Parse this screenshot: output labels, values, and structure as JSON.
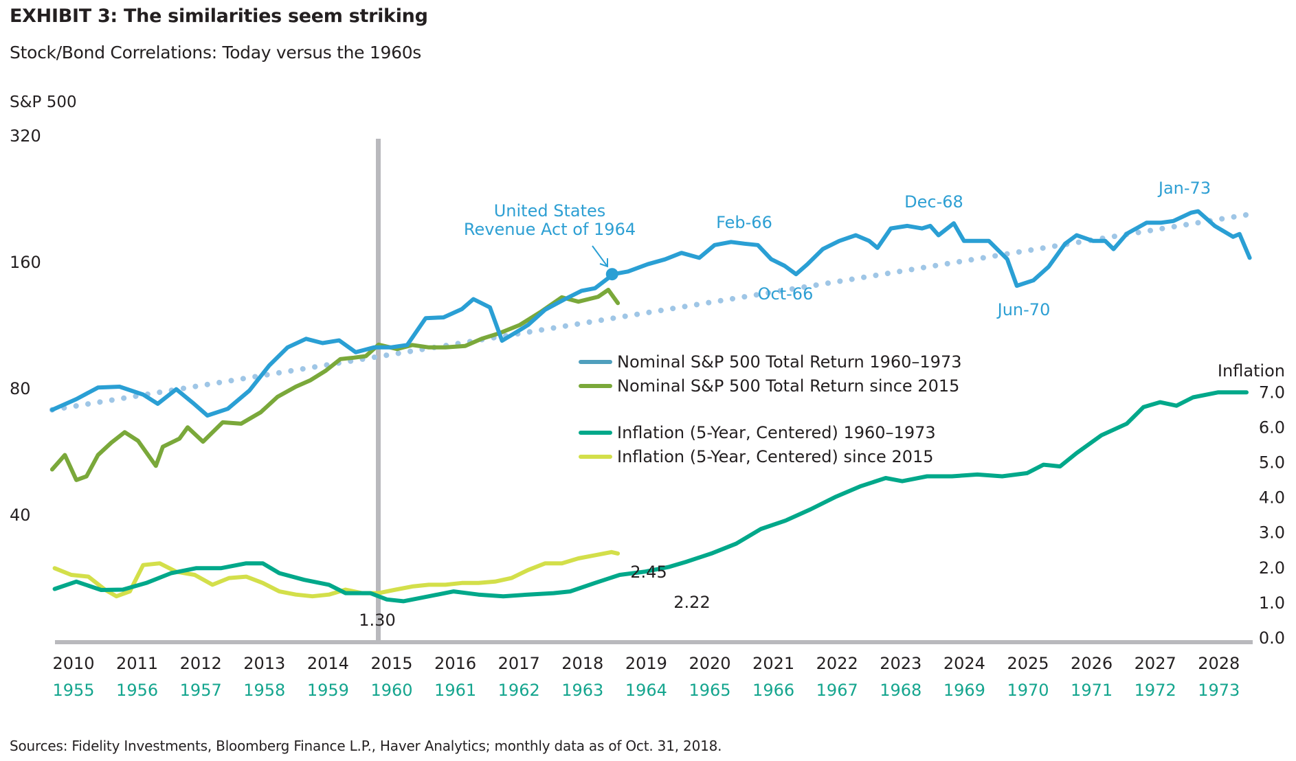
{
  "title": "EXHIBIT 3: The similarities seem striking",
  "subtitle": "Stock/Bond Correlations: Today versus the 1960s",
  "source": "Sources: Fidelity Investments, Bloomberg Finance L.P., Haver Analytics; monthly data as of Oct. 31, 2018.",
  "colors": {
    "sp_1960": "#2a9fd4",
    "sp_2015": "#7aa83a",
    "infl_1960": "#00a88a",
    "infl_2015": "#d3df4a",
    "trend": "#9fc6e6",
    "axis": "#b9b9bd",
    "legend_sp_1960": "#4f9fbd",
    "lower_year_labels": "#14a58e"
  },
  "chart_data": {
    "type": "line",
    "title": "EXHIBIT 3: The similarities seem striking",
    "subtitle": "Stock/Bond Correlations: Today versus the 1960s",
    "y_left": {
      "label": "S&P 500",
      "scale": "log2",
      "ticks": [
        "320",
        "160",
        "80",
        "40"
      ],
      "tick_values": [
        320,
        160,
        80,
        40
      ]
    },
    "y_right": {
      "label": "Inflation",
      "ticks": [
        "7.0",
        "6.0",
        "5.0",
        "4.0",
        "3.0",
        "2.0",
        "1.0",
        "0.0"
      ],
      "tick_values": [
        7,
        6,
        5,
        4,
        3,
        2,
        1,
        0
      ],
      "range": [
        0,
        7
      ]
    },
    "x": {
      "top_labels": [
        "2010",
        "2011",
        "2012",
        "2013",
        "2014",
        "2015",
        "2016",
        "2017",
        "2018",
        "2019",
        "2020",
        "2021",
        "2022",
        "2023",
        "2024",
        "2025",
        "2026",
        "2027",
        "2028"
      ],
      "bottom_labels": [
        "1955",
        "1956",
        "1957",
        "1958",
        "1959",
        "1960",
        "1961",
        "1962",
        "1963",
        "1964",
        "1965",
        "1966",
        "1967",
        "1968",
        "1969",
        "1970",
        "1971",
        "1972",
        "1973"
      ],
      "range": [
        2009.9,
        2028.8
      ],
      "note": "x values expressed on the 2010–2028 calendar; 1960s series are shifted by 55 years"
    },
    "vertical_marker": {
      "x": 2015.0
    },
    "legend": {
      "placement": "center-right",
      "items": [
        {
          "label": "Nominal S&P 500 Total Return 1960–1973",
          "series": "sp_1960"
        },
        {
          "label": "Nominal S&P 500 Total Return since 2015",
          "series": "sp_2015"
        },
        {
          "label": "Inflation (5-Year, Centered) 1960–1973",
          "series": "infl_1960"
        },
        {
          "label": "Inflation (5-Year, Centered) since 2015",
          "series": "infl_2015"
        }
      ]
    },
    "series": [
      {
        "name": "Nominal S&P 500 Total Return 1960–1973",
        "key": "sp_1960",
        "axis": "left",
        "x": [
          2009.88,
          2010.26,
          2010.6,
          2010.94,
          2011.31,
          2011.54,
          2011.83,
          2012.09,
          2012.32,
          2012.64,
          2012.98,
          2013.29,
          2013.58,
          2013.87,
          2014.13,
          2014.39,
          2014.65,
          2014.94,
          2015.2,
          2015.46,
          2015.75,
          2016.03,
          2016.32,
          2016.5,
          2016.76,
          2016.95,
          2017.16,
          2017.36,
          2017.63,
          2017.94,
          2018.2,
          2018.41,
          2018.7,
          2018.93,
          2019.24,
          2019.51,
          2019.77,
          2020.05,
          2020.29,
          2020.55,
          2020.76,
          2020.97,
          2021.18,
          2021.39,
          2021.57,
          2021.75,
          2021.99,
          2022.25,
          2022.51,
          2022.72,
          2022.85,
          2023.06,
          2023.32,
          2023.55,
          2023.68,
          2023.81,
          2024.05,
          2024.21,
          2024.6,
          2024.89,
          2025.04,
          2025.3,
          2025.54,
          2025.8,
          2025.98,
          2026.24,
          2026.43,
          2026.56,
          2026.77,
          2027.08,
          2027.31,
          2027.5,
          2027.78,
          2027.89,
          2028.15,
          2028.44,
          2028.54,
          2028.7
        ],
        "values": [
          71.0,
          75.3,
          80.2,
          80.6,
          77.2,
          73.4,
          79.5,
          73.8,
          68.8,
          71.4,
          78.9,
          90.5,
          100.0,
          104.8,
          102.4,
          103.9,
          97.4,
          100.0,
          100.0,
          101.3,
          117.4,
          117.9,
          123.4,
          130.3,
          124.5,
          103.7,
          108.4,
          113.1,
          123.0,
          130.3,
          136.4,
          138.3,
          149.4,
          151.6,
          157.8,
          162.0,
          167.9,
          163.4,
          175.3,
          178.3,
          176.6,
          175.3,
          162.2,
          156.4,
          149.4,
          157.8,
          171.4,
          179.3,
          185.0,
          179.3,
          172.6,
          192.0,
          194.7,
          192.0,
          194.7,
          185.0,
          197.5,
          179.3,
          179.3,
          162.2,
          140.2,
          144.4,
          155.6,
          176.6,
          185.0,
          179.3,
          179.3,
          171.4,
          186.6,
          198.2,
          198.2,
          200.0,
          209.3,
          211.0,
          194.7,
          183.4,
          186.2,
          163.4
        ]
      },
      {
        "name": "Nominal S&P 500 Total Return since 2015",
        "key": "sp_2015",
        "axis": "left",
        "x": [
          2009.88,
          2010.08,
          2010.26,
          2010.42,
          2010.6,
          2010.81,
          2011.02,
          2011.23,
          2011.51,
          2011.62,
          2011.88,
          2012.01,
          2012.25,
          2012.56,
          2012.85,
          2013.16,
          2013.42,
          2013.71,
          2013.94,
          2014.18,
          2014.41,
          2014.62,
          2014.81,
          2015.01,
          2015.3,
          2015.54,
          2015.8,
          2016.06,
          2016.37,
          2016.63,
          2016.89,
          2017.23,
          2017.57,
          2017.89,
          2018.15,
          2018.46,
          2018.62,
          2018.77
        ],
        "values": [
          51.2,
          55.4,
          48.3,
          49.3,
          55.4,
          59.3,
          62.8,
          59.9,
          52.2,
          58.0,
          60.6,
          64.5,
          59.6,
          66.3,
          65.8,
          70.1,
          76.2,
          80.6,
          83.5,
          88.0,
          93.8,
          94.5,
          95.3,
          101.5,
          99.1,
          101.3,
          100.0,
          100.0,
          100.8,
          104.8,
          107.8,
          113.1,
          121.8,
          131.6,
          128.5,
          132.0,
          137.1,
          127.5
        ]
      },
      {
        "name": "Trend",
        "key": "trend",
        "axis": "left",
        "style": "dotted",
        "x": [
          2009.88,
          2028.78
        ],
        "values": [
          71.0,
          208.4
        ]
      },
      {
        "name": "Inflation (5-Year, Centered) 1960–1973",
        "key": "infl_1960",
        "axis": "right",
        "x": [
          2009.92,
          2010.26,
          2010.65,
          2010.99,
          2011.36,
          2011.75,
          2012.14,
          2012.53,
          2012.93,
          2013.19,
          2013.45,
          2013.84,
          2014.23,
          2014.49,
          2014.88,
          2015.14,
          2015.4,
          2015.8,
          2016.19,
          2016.58,
          2016.97,
          2017.36,
          2017.76,
          2018.02,
          2018.41,
          2018.8,
          2019.19,
          2019.58,
          2019.84,
          2020.24,
          2020.63,
          2021.02,
          2021.41,
          2021.8,
          2022.2,
          2022.59,
          2022.98,
          2023.24,
          2023.63,
          2024.02,
          2024.42,
          2024.81,
          2025.2,
          2025.46,
          2025.72,
          2025.98,
          2026.37,
          2026.77,
          2027.03,
          2027.29,
          2027.55,
          2027.81,
          2028.2,
          2028.65
        ],
        "values": [
          1.38,
          1.59,
          1.35,
          1.36,
          1.55,
          1.83,
          1.97,
          1.97,
          2.11,
          2.11,
          1.83,
          1.64,
          1.5,
          1.26,
          1.26,
          1.08,
          1.03,
          1.17,
          1.31,
          1.22,
          1.17,
          1.22,
          1.26,
          1.31,
          1.55,
          1.78,
          1.87,
          2.01,
          2.15,
          2.39,
          2.67,
          3.09,
          3.33,
          3.65,
          4.01,
          4.31,
          4.54,
          4.45,
          4.59,
          4.59,
          4.64,
          4.59,
          4.68,
          4.92,
          4.87,
          5.25,
          5.76,
          6.09,
          6.56,
          6.7,
          6.6,
          6.84,
          6.98,
          6.98
        ]
      },
      {
        "name": "Inflation (5-Year, Centered) since 2015",
        "key": "infl_2015",
        "axis": "right",
        "x": [
          2009.92,
          2010.18,
          2010.45,
          2010.71,
          2010.89,
          2011.1,
          2011.31,
          2011.57,
          2011.83,
          2012.12,
          2012.4,
          2012.66,
          2012.93,
          2013.19,
          2013.45,
          2013.71,
          2013.97,
          2014.23,
          2014.49,
          2014.75,
          2015.01,
          2015.28,
          2015.54,
          2015.8,
          2016.06,
          2016.32,
          2016.58,
          2016.84,
          2017.1,
          2017.36,
          2017.63,
          2017.89,
          2018.15,
          2018.41,
          2018.67,
          2018.77
        ],
        "values": [
          1.97,
          1.78,
          1.73,
          1.36,
          1.17,
          1.31,
          2.06,
          2.11,
          1.87,
          1.78,
          1.5,
          1.69,
          1.73,
          1.55,
          1.31,
          1.22,
          1.17,
          1.22,
          1.36,
          1.26,
          1.26,
          1.36,
          1.45,
          1.5,
          1.5,
          1.55,
          1.55,
          1.59,
          1.69,
          1.92,
          2.11,
          2.11,
          2.25,
          2.34,
          2.43,
          2.39
        ]
      }
    ],
    "highlight_point": {
      "series": "sp_1960",
      "x": 2018.68,
      "value": 149.4
    },
    "annotations": [
      {
        "id": "revenue-act",
        "lines": [
          "United States",
          "Revenue Act of 1964"
        ],
        "x": 2018.68,
        "value": 149.4,
        "color": "#2a9fd4",
        "arrow": true
      },
      {
        "id": "feb-66",
        "text": "Feb-66",
        "x": 2020.9,
        "value": 178
      },
      {
        "id": "oct-66",
        "text": "Oct-66",
        "x": 2021.6,
        "value": 149
      },
      {
        "id": "dec-68",
        "text": "Dec-68",
        "x": 2023.9,
        "value": 198
      },
      {
        "id": "jun-70",
        "text": "Jun-70",
        "x": 2025.0,
        "value": 140
      },
      {
        "id": "jan-73",
        "text": "Jan-73",
        "x": 2027.8,
        "value": 211
      }
    ],
    "value_labels": [
      {
        "text": "1.30",
        "x": 2015.0,
        "axis": "right",
        "value": 1.3
      },
      {
        "text": "2.45",
        "x": 2018.9,
        "axis": "right",
        "value": 2.45
      },
      {
        "text": "2.22",
        "x": 2019.6,
        "axis": "right",
        "value": 2.22
      }
    ],
    "grid": false
  }
}
